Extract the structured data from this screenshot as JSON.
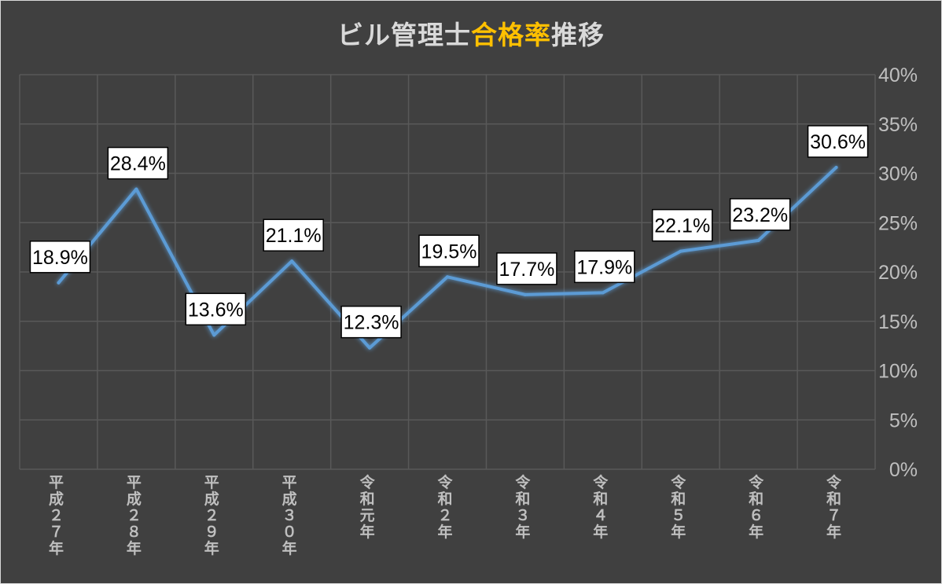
{
  "title": {
    "part1": "ビル管理士",
    "part2": "合格率",
    "part3": "推移"
  },
  "colors": {
    "background": "#404040",
    "line": "#5b9bd5",
    "title_highlight": "#ffc000",
    "text": "#bfbfbf",
    "grid": "#595959"
  },
  "chart_data": {
    "type": "line",
    "title": "ビル管理士合格率推移",
    "categories": [
      "平成27年",
      "平成28年",
      "平成29年",
      "平成30年",
      "令和元年",
      "令和2年",
      "令和3年",
      "令和4年",
      "令和5年",
      "令和6年",
      "令和7年"
    ],
    "categories_vertical": [
      "平成２７年",
      "平成２８年",
      "平成２９年",
      "平成３０年",
      "令和元年",
      "令和２年",
      "令和３年",
      "令和４年",
      "令和５年",
      "令和６年",
      "令和７年"
    ],
    "values": [
      18.9,
      28.4,
      13.6,
      21.1,
      12.3,
      19.5,
      17.7,
      17.9,
      22.1,
      23.2,
      30.6
    ],
    "data_labels": [
      "18.9%",
      "28.4%",
      "13.6%",
      "21.1%",
      "12.3%",
      "19.5%",
      "17.7%",
      "17.9%",
      "22.1%",
      "23.2%",
      "30.6%"
    ],
    "y_ticks": [
      "0%",
      "5%",
      "10%",
      "15%",
      "20%",
      "25%",
      "30%",
      "35%",
      "40%"
    ],
    "ylim": [
      0,
      40
    ],
    "y_axis_position": "right",
    "grid": true,
    "legend": "none"
  }
}
